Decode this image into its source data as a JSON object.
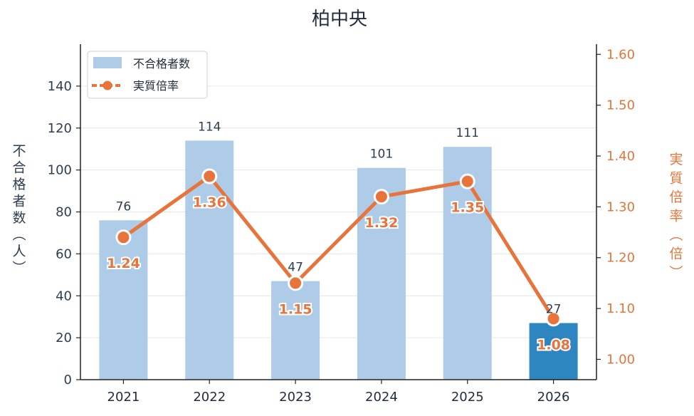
{
  "chart_data": {
    "type": "bar",
    "title": "柏中央",
    "categories": [
      "2021",
      "2022",
      "2023",
      "2024",
      "2025",
      "2026"
    ],
    "series": [
      {
        "name": "不合格者数",
        "type": "bar",
        "axis": "left",
        "values": [
          76,
          114,
          47,
          101,
          111,
          27
        ]
      },
      {
        "name": "実質倍率",
        "type": "line",
        "axis": "right",
        "values": [
          1.24,
          1.36,
          1.15,
          1.32,
          1.35,
          1.08
        ]
      }
    ],
    "ylabel": "不合格者数（人）",
    "y2label": "実質倍率（倍）",
    "ylim": [
      0,
      160
    ],
    "y2lim": [
      0.96,
      1.62
    ],
    "yticks": [
      0,
      20,
      40,
      60,
      80,
      100,
      120,
      140
    ],
    "y2ticks": [
      1.0,
      1.1,
      1.2,
      1.3,
      1.4,
      1.5,
      1.6
    ],
    "legend": "top-left",
    "grid": true,
    "highlight_category": "2026",
    "colors": {
      "bar": "#aecce8",
      "bar_highlight": "#2e86c1",
      "line": "#e8743b",
      "left_axis_text": "#2c3e50",
      "right_axis_text": "#e8743b",
      "grid": "#e6e6e6"
    }
  }
}
